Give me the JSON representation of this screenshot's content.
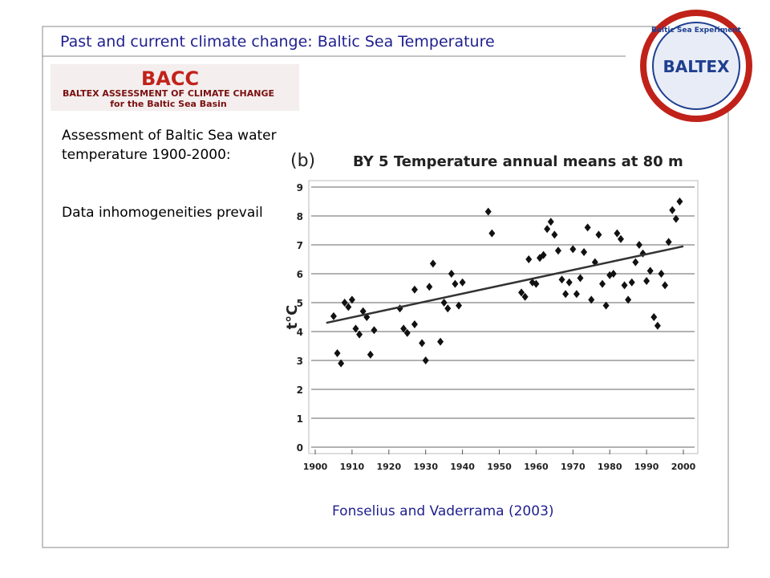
{
  "slide_title": "Past and current climate change: Baltic Sea Temperature",
  "bacc_logo": {
    "name": "BACC",
    "line1": "BALTEX ASSESSMENT OF CLIMATE CHANGE",
    "line2": "for the Baltic Sea Basin"
  },
  "baltex_logo": {
    "ring": "Baltic Sea Experiment",
    "name": "BALTEX"
  },
  "bullets": [
    "Assessment of Baltic Sea water temperature 1900-2000:",
    "Data inhomogeneities prevail"
  ],
  "citation": "Fonselius and Vaderrama (2003)",
  "chart_data": {
    "type": "scatter",
    "panel": "(b)",
    "title": "BY 5 Temperature annual means at 80 m",
    "y_label": "t°C",
    "x": [
      1905,
      1906,
      1907,
      1908,
      1909,
      1910,
      1911,
      1912,
      1913,
      1914,
      1915,
      1916,
      1923,
      1924,
      1925,
      1927,
      1927,
      1929,
      1930,
      1931,
      1932,
      1934,
      1935,
      1936,
      1937,
      1938,
      1939,
      1940,
      1947,
      1948,
      1956,
      1957,
      1958,
      1959,
      1960,
      1961,
      1962,
      1963,
      1964,
      1965,
      1966,
      1967,
      1968,
      1969,
      1970,
      1971,
      1972,
      1973,
      1974,
      1975,
      1976,
      1977,
      1978,
      1979,
      1980,
      1981,
      1982,
      1983,
      1984,
      1985,
      1986,
      1987,
      1988,
      1989,
      1990,
      1991,
      1992,
      1993,
      1994,
      1995,
      1996,
      1997,
      1998,
      1999
    ],
    "values": [
      4.53,
      3.25,
      2.9,
      5.0,
      4.85,
      5.1,
      4.1,
      3.9,
      4.7,
      4.5,
      3.2,
      4.05,
      4.8,
      4.1,
      3.95,
      5.45,
      4.25,
      3.6,
      3.0,
      5.55,
      6.35,
      3.65,
      5.0,
      4.8,
      6.0,
      5.65,
      4.9,
      5.7,
      8.15,
      7.4,
      5.35,
      5.2,
      6.5,
      5.7,
      5.65,
      6.55,
      6.65,
      7.55,
      7.8,
      7.35,
      6.8,
      5.8,
      5.3,
      5.7,
      6.85,
      5.3,
      5.85,
      6.75,
      7.6,
      5.1,
      6.4,
      7.35,
      5.65,
      4.9,
      5.95,
      6.0,
      7.4,
      7.2,
      5.6,
      5.1,
      5.7,
      6.4,
      7.0,
      6.7,
      5.75,
      6.1,
      4.5,
      4.2,
      6.0,
      5.6,
      7.1,
      8.2,
      7.9,
      8.5
    ],
    "color": "#111111",
    "trendline": {
      "x": [
        1903,
        2000
      ],
      "values": [
        4.3,
        6.95
      ]
    },
    "xlim": [
      1900,
      2000
    ],
    "ylim": [
      0,
      9
    ],
    "xticks": [
      1900,
      1910,
      1920,
      1930,
      1940,
      1950,
      1960,
      1970,
      1980,
      1990,
      2000
    ],
    "yticks": [
      0,
      1,
      2,
      3,
      4,
      5,
      6,
      7,
      8,
      9
    ],
    "grid": true
  }
}
